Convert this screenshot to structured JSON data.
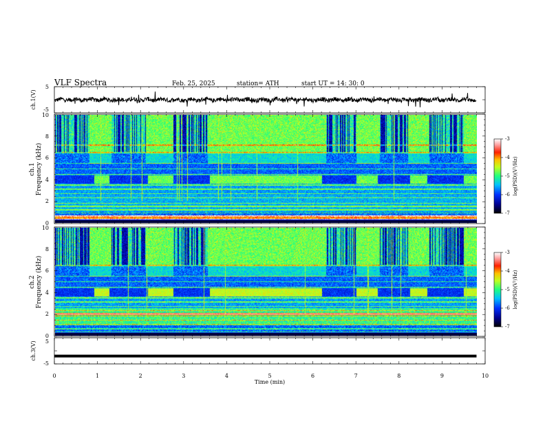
{
  "header": {
    "title": "VLF  Spectra",
    "date": "Feb. 25, 2025",
    "station": "station= ATH",
    "start": "start  UT  =   14: 30: 0"
  },
  "chart_data": [
    {
      "type": "line",
      "panel": "ch1-waveform",
      "ylabel": "ch.1(V)",
      "ylim": [
        -5,
        5
      ],
      "yticks": [
        "5",
        "-5"
      ],
      "xlim": [
        0,
        10
      ],
      "data_extent_min": [
        0,
        9.8
      ],
      "level_v": 0,
      "color": "#000000"
    },
    {
      "type": "heatmap",
      "panel": "ch1-spectrogram",
      "ylabel": "ch.1\nFrequency  (kHz)",
      "ylabel_lines": [
        "ch.1",
        "Frequency  (kHz)"
      ],
      "ylim": [
        0,
        10
      ],
      "yticks": [
        "0",
        "2",
        "4",
        "6",
        "8",
        "10"
      ],
      "xlim": [
        0,
        10
      ],
      "data_extent_min": [
        0,
        9.8
      ],
      "colorbar": {
        "label": "log(PSD)(V²/Hz)",
        "range": [
          -7,
          -3
        ],
        "ticks": [
          "-3",
          "-4",
          "-5",
          "-6",
          "-7"
        ]
      },
      "transmitter_blocks_min": [
        [
          0.9,
          1.25
        ],
        [
          2.15,
          2.75
        ],
        [
          3.6,
          6.2
        ],
        [
          7.0,
          7.5
        ],
        [
          8.25,
          8.65
        ],
        [
          9.5,
          9.8
        ]
      ],
      "transmitter_band_khz": [
        3.6,
        4.4
      ],
      "broadband_high_intervals_min": [
        [
          0,
          0.8
        ],
        [
          1.3,
          2.1
        ],
        [
          2.75,
          3.55
        ],
        [
          6.3,
          7.0
        ],
        [
          7.55,
          8.2
        ],
        [
          8.7,
          9.5
        ]
      ]
    },
    {
      "type": "heatmap",
      "panel": "ch2-spectrogram",
      "ylabel": "ch.2\nFrequency  (kHz)",
      "ylabel_lines": [
        "ch.2",
        "Frequency  (kHz)"
      ],
      "ylim": [
        0,
        10
      ],
      "yticks": [
        "0",
        "2",
        "4",
        "6",
        "8",
        "10"
      ],
      "xlim": [
        0,
        10
      ],
      "data_extent_min": [
        0,
        9.8
      ],
      "colorbar": {
        "label": "log(PSD)(V²/Hz)",
        "range": [
          -7,
          -3
        ],
        "ticks": [
          "-3",
          "-4",
          "-5",
          "-6",
          "-7"
        ]
      },
      "transmitter_blocks_min": [
        [
          0.9,
          1.25
        ],
        [
          2.15,
          2.75
        ],
        [
          3.6,
          6.2
        ],
        [
          7.0,
          7.5
        ],
        [
          8.25,
          8.65
        ],
        [
          9.5,
          9.8
        ]
      ],
      "transmitter_band_khz": [
        3.6,
        4.4
      ],
      "broadband_high_intervals_min": [
        [
          0,
          0.8
        ],
        [
          1.3,
          2.1
        ],
        [
          2.75,
          3.55
        ],
        [
          6.3,
          7.0
        ],
        [
          7.55,
          8.2
        ],
        [
          8.7,
          9.5
        ]
      ]
    },
    {
      "type": "line",
      "panel": "ch3-waveform",
      "ylabel": "ch.3(V)",
      "ylim": [
        -5,
        5
      ],
      "yticks": [
        "5",
        "-5"
      ],
      "xlim": [
        0,
        10
      ],
      "data_extent_min": [
        0,
        9.8
      ],
      "level_v": -2,
      "color": "#000000"
    }
  ],
  "xaxis": {
    "label": "Time  (min)",
    "ticks": [
      "0",
      "1",
      "2",
      "3",
      "4",
      "5",
      "6",
      "7",
      "8",
      "9",
      "10"
    ],
    "range": [
      0,
      10
    ]
  }
}
